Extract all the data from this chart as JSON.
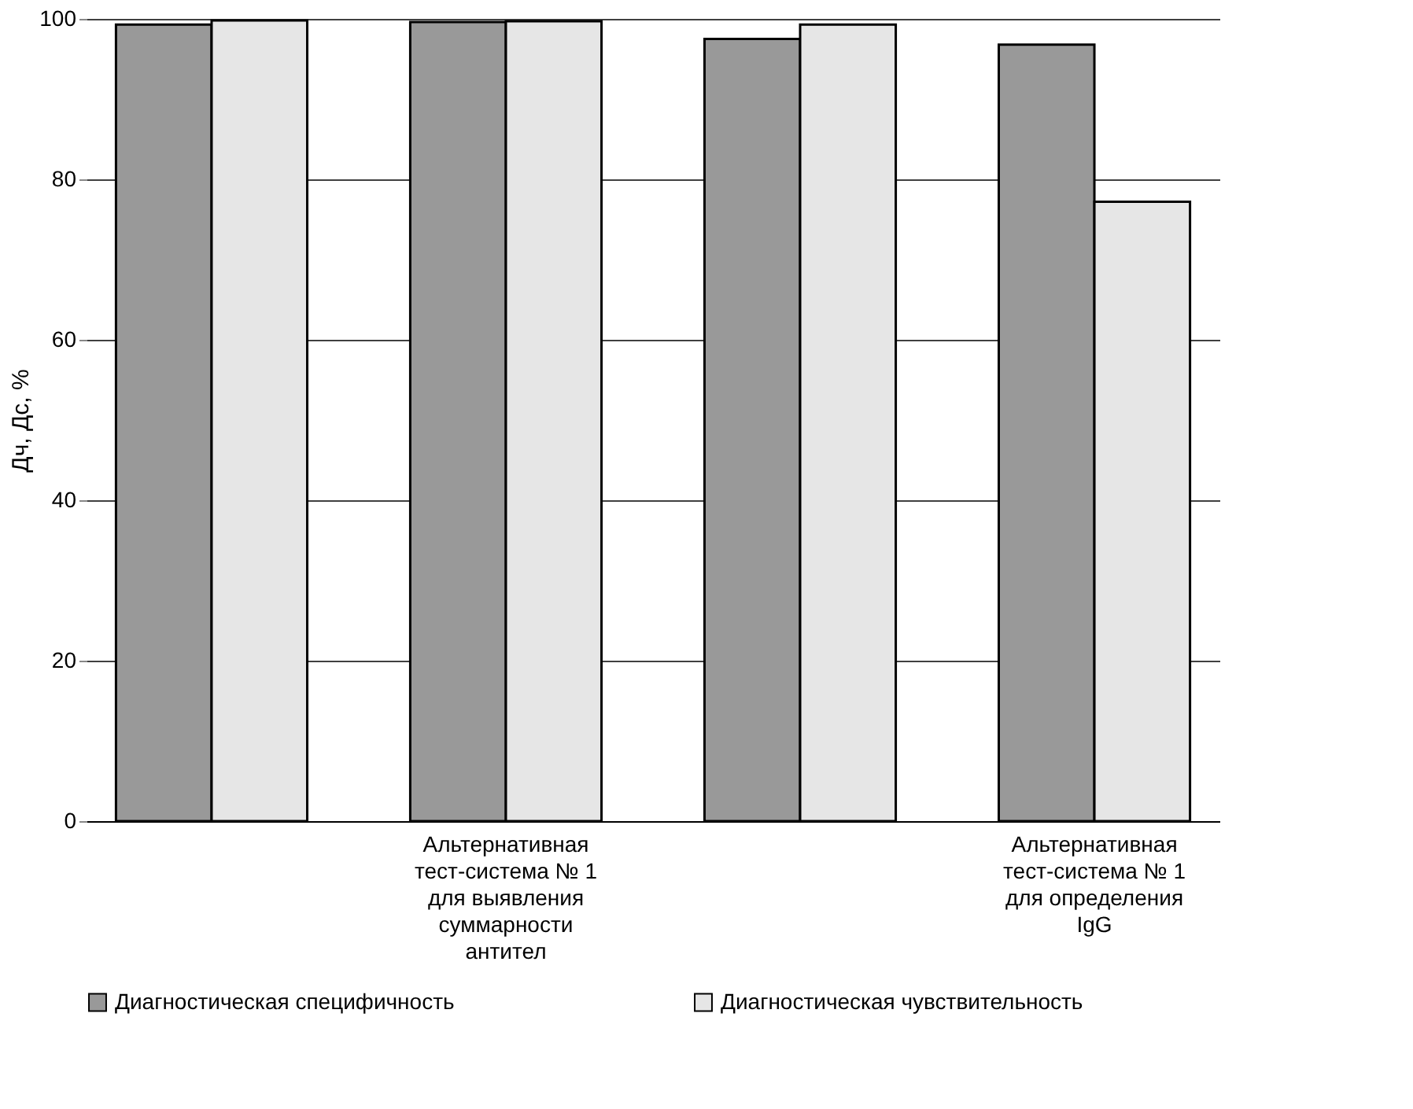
{
  "chart_data": {
    "type": "bar",
    "ylabel": "Дч, Дс, %",
    "categories": [
      null,
      "Альтернативная тест-система № 1 для выявления суммарности антител",
      null,
      "Альтернативная тест-система № 1 для определения IgG"
    ],
    "series": [
      {
        "name": "Диагностическая специфичность",
        "color": "#999999",
        "values": [
          99.3,
          99.6,
          97.5,
          96.8
        ]
      },
      {
        "name": "Диагностическая чувствительность",
        "color": "#e6e6e6",
        "values": [
          99.8,
          99.7,
          99.3,
          77.2
        ]
      }
    ],
    "ylim": [
      0,
      100
    ],
    "yticks": [
      0,
      20,
      40,
      60,
      80,
      100
    ],
    "grid": "y",
    "legend": "bottom"
  }
}
